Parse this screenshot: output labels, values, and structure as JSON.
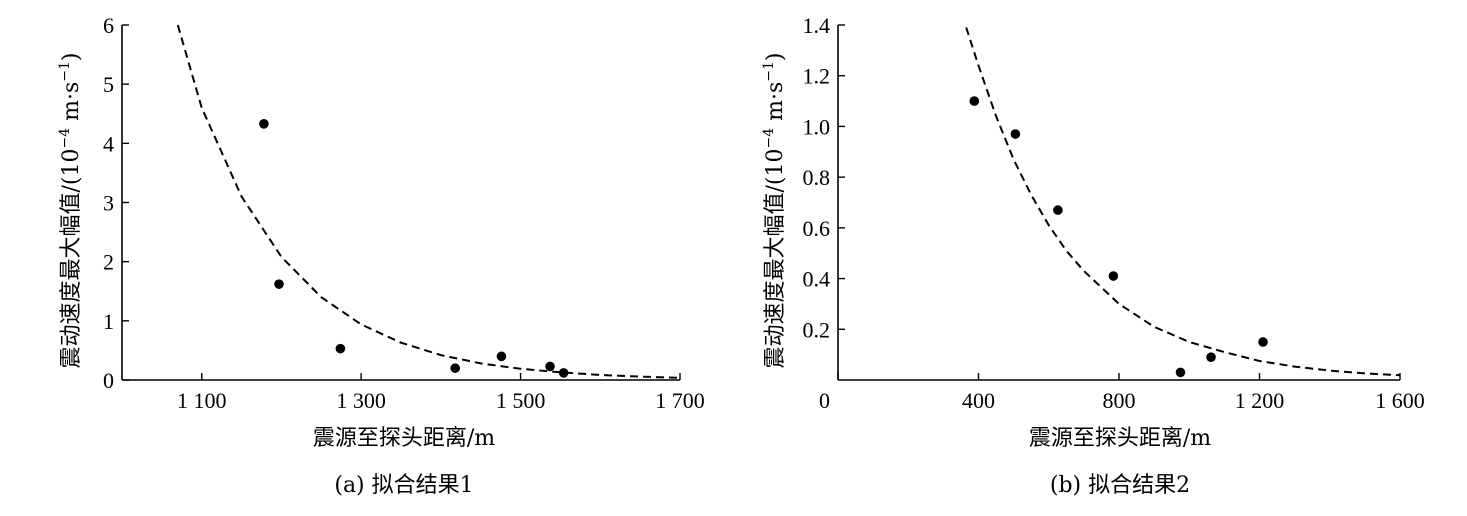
{
  "chart_data": [
    {
      "type": "scatter",
      "xlabel": "震源至探头距离/m",
      "ylabel": "震动速度最大幅值/(10",
      "ylabel_exp": "−4",
      "ylabel_unit": " m·s",
      "ylabel_unit_exp": "−1",
      "ylabel_tail": ")",
      "caption": "(a)  拟合结果1",
      "xlim": [
        1000,
        1700
      ],
      "ylim": [
        0,
        6
      ],
      "xticks": [
        {
          "v": 1100,
          "label": "1 100"
        },
        {
          "v": 1300,
          "label": "1 300"
        },
        {
          "v": 1500,
          "label": "1 500"
        },
        {
          "v": 1700,
          "label": "1 700"
        }
      ],
      "yticks": [
        {
          "v": 0,
          "label": "0"
        },
        {
          "v": 1,
          "label": "1"
        },
        {
          "v": 2,
          "label": "2"
        },
        {
          "v": 3,
          "label": "3"
        },
        {
          "v": 4,
          "label": "4"
        },
        {
          "v": 5,
          "label": "5"
        },
        {
          "v": 6,
          "label": "6"
        }
      ],
      "points": [
        [
          1178,
          4.33
        ],
        [
          1197,
          1.62
        ],
        [
          1274,
          0.53
        ],
        [
          1418,
          0.2
        ],
        [
          1476,
          0.4
        ],
        [
          1537,
          0.23
        ],
        [
          1554,
          0.12
        ]
      ],
      "fit": {
        "style": "dashed",
        "x": [
          1070,
          1100,
          1150,
          1200,
          1250,
          1300,
          1350,
          1400,
          1450,
          1500,
          1550,
          1600,
          1650,
          1700
        ],
        "y": [
          6.0,
          4.6,
          3.1,
          2.08,
          1.4,
          0.94,
          0.63,
          0.42,
          0.28,
          0.19,
          0.13,
          0.085,
          0.057,
          0.038
        ]
      }
    },
    {
      "type": "scatter",
      "xlabel": "震源至探头距离/m",
      "ylabel": "震动速度最大幅值/(10",
      "ylabel_exp": "−4",
      "ylabel_unit": " m·s",
      "ylabel_unit_exp": "−1",
      "ylabel_tail": ")",
      "caption": "(b)  拟合结果2",
      "xlim": [
        0,
        1600
      ],
      "ylim": [
        0,
        1.4
      ],
      "xticks": [
        {
          "v": 0,
          "label": "0"
        },
        {
          "v": 400,
          "label": "400"
        },
        {
          "v": 800,
          "label": "800"
        },
        {
          "v": 1200,
          "label": "1 200"
        },
        {
          "v": 1600,
          "label": "1 600"
        }
      ],
      "yticks": [
        {
          "v": 0.2,
          "label": "0.2"
        },
        {
          "v": 0.4,
          "label": "0.4"
        },
        {
          "v": 0.6,
          "label": "0.6"
        },
        {
          "v": 0.8,
          "label": "0.8"
        },
        {
          "v": 1.0,
          "label": "1.0"
        },
        {
          "v": 1.2,
          "label": "1.2"
        },
        {
          "v": 1.4,
          "label": "1.4"
        }
      ],
      "points": [
        [
          388,
          1.1
        ],
        [
          505,
          0.97
        ],
        [
          626,
          0.67
        ],
        [
          784,
          0.41
        ],
        [
          975,
          0.03
        ],
        [
          1062,
          0.09
        ],
        [
          1210,
          0.15
        ]
      ],
      "fit": {
        "style": "dashed",
        "x": [
          365,
          400,
          450,
          500,
          550,
          600,
          650,
          700,
          800,
          900,
          1000,
          1100,
          1200,
          1300,
          1400,
          1500,
          1600
        ],
        "y": [
          1.39,
          1.24,
          1.04,
          0.87,
          0.73,
          0.61,
          0.51,
          0.43,
          0.3,
          0.21,
          0.15,
          0.11,
          0.075,
          0.053,
          0.037,
          0.026,
          0.019
        ]
      }
    }
  ]
}
